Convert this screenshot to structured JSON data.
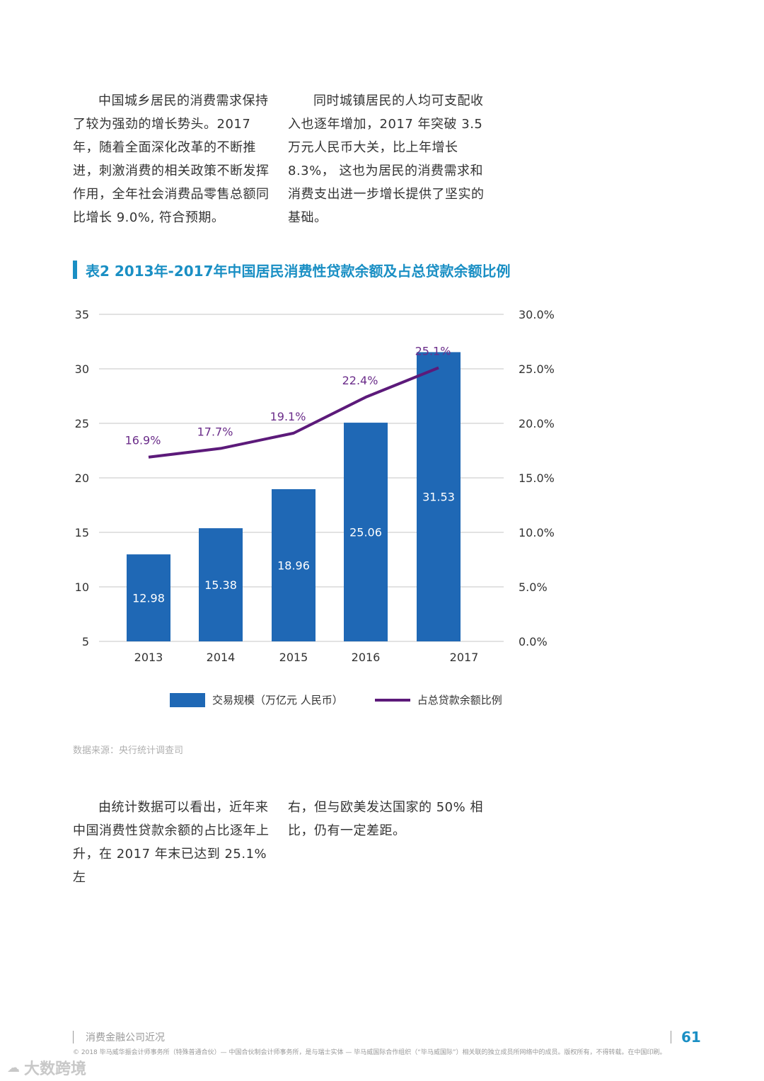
{
  "paragraphs": {
    "p1": "中国城乡居民的消费需求保持了较为强劲的增长势头。2017 年，随着全面深化改革的不断推进，刺激消费的相关政策不断发挥作用，全年社会消费品零售总额同比增长 9.0%, 符合预期。",
    "p2": "同时城镇居民的人均可支配收入也逐年增加，2017 年突破 3.5 万元人民币大关，比上年增长 8.3%， 这也为居民的消费需求和消费支出进一步增长提供了坚实的基础。",
    "p3": "由统计数据可以看出，近年来中国消费性贷款余额的占比逐年上升，在 2017 年末已达到 25.1% 左",
    "p4": "右，但与欧美发达国家的 50% 相比，仍有一定差距。"
  },
  "chart_title": "表2  2013年-2017年中国居民消费性贷款余额及占总贷款余额比例",
  "chart_data": {
    "type": "bar",
    "categories": [
      "2013",
      "2014",
      "2015",
      "2016",
      "2017"
    ],
    "series": [
      {
        "name": "交易规模（万亿元 人民币）",
        "type": "bar",
        "axis": "left",
        "values": [
          12.98,
          15.38,
          18.96,
          25.06,
          31.53
        ],
        "labels": [
          "12.98",
          "15.38",
          "18.96",
          "25.06",
          "31.53"
        ]
      },
      {
        "name": "占总贷款余额比例",
        "type": "line",
        "axis": "right",
        "values": [
          16.9,
          17.7,
          19.1,
          22.4,
          25.1
        ],
        "labels": [
          "16.9%",
          "17.7%",
          "19.1%",
          "22.4%",
          "25.1%"
        ]
      }
    ],
    "left_axis": {
      "ylim": [
        5,
        35
      ],
      "ticks": [
        "5",
        "10",
        "15",
        "20",
        "25",
        "30",
        "35"
      ]
    },
    "right_axis": {
      "ylim": [
        0,
        30
      ],
      "ticks": [
        "0.0%",
        "5.0%",
        "10.0%",
        "15.0%",
        "20.0%",
        "25.0%",
        "30.0%"
      ]
    },
    "grid": true,
    "legend_position": "bottom",
    "colors": {
      "bar": "#1f68b5",
      "line": "#5c1a7a",
      "line_label": "#6b2d8a",
      "grid": "#d9d9d9"
    }
  },
  "legend": {
    "bar_label": "交易规模（万亿元 人民币）",
    "line_label": "占总贷款余额比例"
  },
  "source": "数据来源：央行统计调查司",
  "footer": {
    "section": "消费金融公司近况",
    "page_number": "61",
    "copyright": "© 2018 毕马威华振会计师事务所（特殊普通合伙）— 中国合伙制会计师事务所，是与瑞士实体 — 毕马威国际合作组织（“毕马威国际”）相关联的独立成员所网络中的成员。版权所有，不得转载。在中国印刷。"
  },
  "watermark": {
    "icon": "cloud-chat-icon",
    "text": "大数跨境"
  }
}
